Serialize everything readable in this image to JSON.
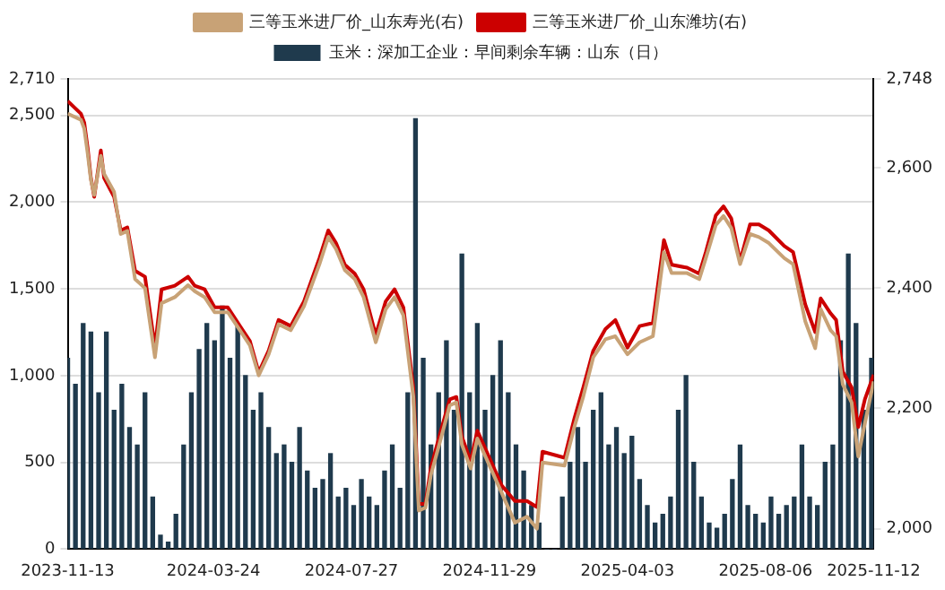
{
  "chart_data": {
    "type": "bar",
    "xlim": [
      "2023-11-13",
      "2025-11-12"
    ],
    "xticks": [
      "2023-11-13",
      "2024-03-24",
      "2024-07-27",
      "2024-11-29",
      "2025-04-03",
      "2025-08-06",
      "2025-11-12"
    ],
    "ylim": [
      0,
      2710
    ],
    "yticks": [
      0,
      500,
      {
        "value": 1000,
        "label": "1,000"
      },
      {
        "value": 1500,
        "label": "1,500"
      },
      {
        "value": 2000,
        "label": "2,000"
      },
      {
        "value": 2500,
        "label": "2,500"
      },
      {
        "value": 2710,
        "label": "2,710"
      }
    ],
    "y2lim": [
      1966,
      2748
    ],
    "y2ticks": [
      {
        "value": 2000,
        "label": "2,000"
      },
      {
        "value": 2200,
        "label": "2,200"
      },
      {
        "value": 2400,
        "label": "2,400"
      },
      {
        "value": 2600,
        "label": "2,600"
      },
      {
        "value": 2748,
        "label": "2,748"
      }
    ],
    "grid": "y",
    "legend": "top",
    "marker": "none",
    "line_style": "solid",
    "series": [
      {
        "name": "三等玉米进厂价_山东寿光(右)",
        "type": "line",
        "axis": "y2",
        "color": "#c8a276",
        "x": [
          "2023-11-13",
          "2023-11-25",
          "2023-11-28",
          "2023-12-01",
          "2023-12-04",
          "2023-12-07",
          "2023-12-13",
          "2023-12-16",
          "2023-12-25",
          "2023-12-31",
          "2024-01-06",
          "2024-01-13",
          "2024-01-22",
          "2024-01-31",
          "2024-02-06",
          "2024-02-18",
          "2024-03-01",
          "2024-03-07",
          "2024-03-16",
          "2024-03-25",
          "2024-04-06",
          "2024-04-17",
          "2024-04-26",
          "2024-05-04",
          "2024-05-13",
          "2024-05-22",
          "2024-06-02",
          "2024-06-14",
          "2024-06-28",
          "2024-07-06",
          "2024-07-13",
          "2024-07-21",
          "2024-07-30",
          "2024-08-07",
          "2024-08-18",
          "2024-08-27",
          "2024-09-04",
          "2024-09-12",
          "2024-09-21",
          "2024-09-26",
          "2024-10-02",
          "2024-10-07",
          "2024-10-16",
          "2024-10-24",
          "2024-10-30",
          "2024-11-04",
          "2024-11-12",
          "2024-11-18",
          "2024-12-10",
          "2024-12-22",
          "2025-01-02",
          "2025-01-11",
          "2025-01-16",
          "2025-02-05",
          "2025-02-14",
          "2025-02-22",
          "2025-03-03",
          "2025-03-14",
          "2025-03-23",
          "2025-04-03",
          "2025-04-14",
          "2025-04-26",
          "2025-05-06",
          "2025-05-13",
          "2025-05-27",
          "2025-06-07",
          "2025-06-13",
          "2025-06-22",
          "2025-06-29",
          "2025-07-06",
          "2025-07-14",
          "2025-07-23",
          "2025-07-31",
          "2025-08-09",
          "2025-08-23",
          "2025-08-31",
          "2025-09-11",
          "2025-09-20",
          "2025-09-25",
          "2025-10-04",
          "2025-10-09",
          "2025-10-15",
          "2025-10-23",
          "2025-10-29",
          "2025-11-04",
          "2025-11-12"
        ],
        "values": [
          2690,
          2680,
          2665,
          2625,
          2580,
          2555,
          2620,
          2590,
          2560,
          2490,
          2495,
          2415,
          2400,
          2285,
          2375,
          2385,
          2405,
          2395,
          2385,
          2360,
          2360,
          2330,
          2305,
          2255,
          2290,
          2340,
          2330,
          2370,
          2440,
          2485,
          2465,
          2430,
          2415,
          2385,
          2310,
          2365,
          2385,
          2355,
          2220,
          2030,
          2035,
          2090,
          2150,
          2205,
          2210,
          2140,
          2100,
          2150,
          2060,
          2010,
          2020,
          2000,
          2110,
          2105,
          2170,
          2220,
          2285,
          2315,
          2320,
          2290,
          2310,
          2320,
          2460,
          2425,
          2425,
          2415,
          2450,
          2505,
          2520,
          2500,
          2440,
          2490,
          2485,
          2475,
          2450,
          2440,
          2345,
          2300,
          2365,
          2330,
          2320,
          2240,
          2210,
          2120,
          2175,
          2245
        ]
      },
      {
        "name": "三等玉米进厂价_山东潍坊(右)",
        "type": "line",
        "axis": "y2",
        "color": "#cc0000",
        "x": [
          "2023-11-13",
          "2023-11-25",
          "2023-11-28",
          "2023-12-01",
          "2023-12-04",
          "2023-12-07",
          "2023-12-13",
          "2023-12-16",
          "2023-12-25",
          "2023-12-31",
          "2024-01-06",
          "2024-01-13",
          "2024-01-22",
          "2024-01-31",
          "2024-02-06",
          "2024-02-18",
          "2024-03-01",
          "2024-03-07",
          "2024-03-16",
          "2024-03-25",
          "2024-04-06",
          "2024-04-17",
          "2024-04-26",
          "2024-05-04",
          "2024-05-13",
          "2024-05-22",
          "2024-06-02",
          "2024-06-14",
          "2024-06-28",
          "2024-07-06",
          "2024-07-13",
          "2024-07-21",
          "2024-07-30",
          "2024-08-07",
          "2024-08-18",
          "2024-08-27",
          "2024-09-04",
          "2024-09-12",
          "2024-09-21",
          "2024-09-26",
          "2024-10-02",
          "2024-10-07",
          "2024-10-16",
          "2024-10-24",
          "2024-10-30",
          "2024-11-04",
          "2024-11-12",
          "2024-11-18",
          "2024-12-10",
          "2024-12-22",
          "2025-01-02",
          "2025-01-11",
          "2025-01-16",
          "2025-02-05",
          "2025-02-14",
          "2025-02-22",
          "2025-03-03",
          "2025-03-14",
          "2025-03-23",
          "2025-04-03",
          "2025-04-14",
          "2025-04-26",
          "2025-05-06",
          "2025-05-13",
          "2025-05-27",
          "2025-06-07",
          "2025-06-13",
          "2025-06-22",
          "2025-06-29",
          "2025-07-06",
          "2025-07-14",
          "2025-07-23",
          "2025-07-31",
          "2025-08-09",
          "2025-08-23",
          "2025-08-31",
          "2025-09-11",
          "2025-09-20",
          "2025-09-25",
          "2025-10-04",
          "2025-10-09",
          "2025-10-15",
          "2025-10-23",
          "2025-10-29",
          "2025-11-04",
          "2025-11-12"
        ],
        "values": [
          2711,
          2690,
          2675,
          2634,
          2583,
          2552,
          2629,
          2583,
          2552,
          2496,
          2501,
          2429,
          2419,
          2301,
          2398,
          2404,
          2419,
          2404,
          2398,
          2368,
          2368,
          2337,
          2312,
          2260,
          2296,
          2347,
          2337,
          2378,
          2450,
          2496,
          2475,
          2439,
          2424,
          2398,
          2322,
          2378,
          2398,
          2368,
          2235,
          2041,
          2041,
          2102,
          2163,
          2215,
          2219,
          2153,
          2112,
          2163,
          2072,
          2046,
          2046,
          2036,
          2128,
          2118,
          2184,
          2235,
          2296,
          2332,
          2347,
          2301,
          2337,
          2342,
          2480,
          2439,
          2434,
          2424,
          2460,
          2521,
          2536,
          2516,
          2445,
          2506,
          2506,
          2496,
          2470,
          2460,
          2373,
          2327,
          2383,
          2358,
          2347,
          2261,
          2235,
          2169,
          2215,
          2256
        ]
      },
      {
        "name": "玉米：深加工企业：早间剩余车辆：山东（日）",
        "color": "#1f3a4d",
        "x": [
          "2023-11-13",
          "2023-11-20",
          "2023-11-27",
          "2023-12-04",
          "2023-12-11",
          "2023-12-18",
          "2023-12-25",
          "2024-01-01",
          "2024-01-08",
          "2024-01-15",
          "2024-01-22",
          "2024-01-29",
          "2024-02-05",
          "2024-02-12",
          "2024-02-19",
          "2024-02-26",
          "2024-03-04",
          "2024-03-11",
          "2024-03-18",
          "2024-03-25",
          "2024-04-01",
          "2024-04-08",
          "2024-04-15",
          "2024-04-22",
          "2024-04-29",
          "2024-05-06",
          "2024-05-13",
          "2024-05-20",
          "2024-05-27",
          "2024-06-03",
          "2024-06-10",
          "2024-06-17",
          "2024-06-24",
          "2024-07-01",
          "2024-07-08",
          "2024-07-15",
          "2024-07-22",
          "2024-07-29",
          "2024-08-05",
          "2024-08-12",
          "2024-08-19",
          "2024-08-26",
          "2024-09-02",
          "2024-09-09",
          "2024-09-16",
          "2024-09-23",
          "2024-09-30",
          "2024-10-07",
          "2024-10-14",
          "2024-10-21",
          "2024-10-28",
          "2024-11-04",
          "2024-11-11",
          "2024-11-18",
          "2024-11-25",
          "2024-12-02",
          "2024-12-09",
          "2024-12-16",
          "2024-12-23",
          "2024-12-30",
          "2025-01-06",
          "2025-01-13",
          "2025-01-20",
          "2025-01-27",
          "2025-02-03",
          "2025-02-10",
          "2025-02-17",
          "2025-02-24",
          "2025-03-03",
          "2025-03-10",
          "2025-03-17",
          "2025-03-24",
          "2025-03-31",
          "2025-04-07",
          "2025-04-14",
          "2025-04-21",
          "2025-04-28",
          "2025-05-05",
          "2025-05-12",
          "2025-05-19",
          "2025-05-26",
          "2025-06-02",
          "2025-06-09",
          "2025-06-16",
          "2025-06-23",
          "2025-06-30",
          "2025-07-07",
          "2025-07-14",
          "2025-07-21",
          "2025-07-28",
          "2025-08-04",
          "2025-08-11",
          "2025-08-18",
          "2025-08-25",
          "2025-09-01",
          "2025-09-08",
          "2025-09-15",
          "2025-09-22",
          "2025-09-29",
          "2025-10-06",
          "2025-10-13",
          "2025-10-20",
          "2025-10-27",
          "2025-11-03",
          "2025-11-10"
        ],
        "values": [
          1100,
          950,
          1300,
          1250,
          900,
          1250,
          800,
          950,
          700,
          600,
          900,
          300,
          80,
          40,
          200,
          600,
          900,
          1150,
          1300,
          1200,
          1400,
          1100,
          1300,
          1000,
          800,
          900,
          700,
          550,
          600,
          500,
          700,
          450,
          350,
          400,
          550,
          300,
          350,
          250,
          400,
          300,
          250,
          450,
          600,
          350,
          900,
          2480,
          1100,
          600,
          900,
          1200,
          800,
          1700,
          900,
          1300,
          800,
          1000,
          1200,
          900,
          600,
          450,
          250,
          150,
          0,
          0,
          300,
          500,
          700,
          500,
          800,
          900,
          600,
          700,
          550,
          650,
          400,
          250,
          150,
          200,
          300,
          800,
          1000,
          500,
          300,
          150,
          120,
          200,
          400,
          600,
          250,
          200,
          150,
          300,
          200,
          250,
          300,
          600,
          300,
          250,
          500,
          600,
          1200,
          1700,
          1300,
          800,
          1100
        ]
      }
    ]
  }
}
